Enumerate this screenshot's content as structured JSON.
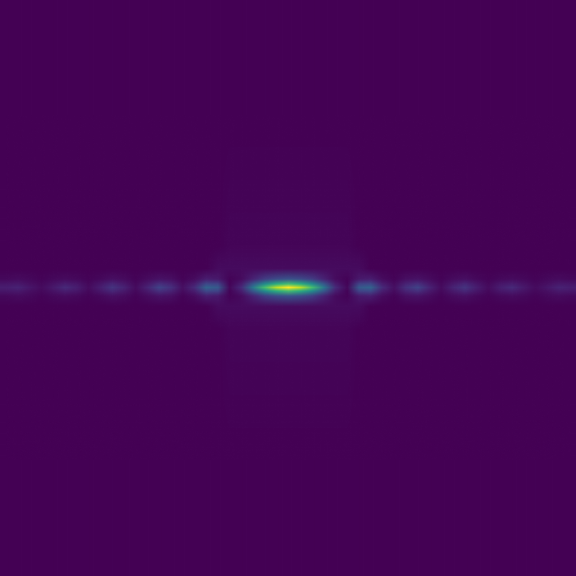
{
  "chart_data": {
    "type": "heatmap",
    "tick_labels": false,
    "xlim": [
      0,
      49
    ],
    "ylim": [
      0,
      576
    ],
    "y_edges": [
      0,
      230,
      262,
      276,
      283,
      286,
      290,
      293,
      300,
      314,
      346,
      576
    ],
    "color_range": [
      0,
      1
    ],
    "cells": [
      [
        0,
        0,
        0,
        0,
        0,
        0,
        0,
        0,
        0,
        0,
        0,
        0,
        0,
        0,
        0,
        0,
        0,
        0,
        0,
        0,
        0,
        0,
        0,
        0,
        0,
        0,
        0,
        0,
        0,
        0,
        0,
        0,
        0,
        0,
        0,
        0,
        0,
        0,
        0,
        0,
        0,
        0,
        0,
        0,
        0,
        0,
        0,
        0,
        0
      ],
      [
        0,
        0,
        0,
        0,
        0,
        0,
        0,
        0,
        0,
        0,
        0,
        0,
        0,
        0,
        0,
        0,
        0,
        0,
        0,
        0.015,
        0.015,
        0.015,
        0.015,
        0.015,
        0.015,
        0.015,
        0.015,
        0.015,
        0.015,
        0.015,
        0,
        0,
        0,
        0,
        0,
        0,
        0,
        0,
        0,
        0,
        0,
        0,
        0,
        0,
        0,
        0,
        0,
        0,
        0
      ],
      [
        0,
        0,
        0,
        0,
        0,
        0,
        0,
        0,
        0,
        0,
        0,
        0,
        0,
        0,
        0,
        0,
        0,
        0,
        0.03,
        0.03,
        0.03,
        0.03,
        0.03,
        0.03,
        0.03,
        0.03,
        0.03,
        0.03,
        0.03,
        0.03,
        0.03,
        0,
        0,
        0,
        0,
        0,
        0,
        0,
        0,
        0,
        0,
        0,
        0,
        0,
        0,
        0,
        0,
        0,
        0
      ],
      [
        0.02,
        0.03,
        0.02,
        0.01,
        0.02,
        0.03,
        0.02,
        0.01,
        0.02,
        0.04,
        0.03,
        0.01,
        0.03,
        0.05,
        0.04,
        0.01,
        0.03,
        0.08,
        0.07,
        0.01,
        0.03,
        0.1,
        0.18,
        0.23,
        0.25,
        0.23,
        0.18,
        0.1,
        0.03,
        0.01,
        0.07,
        0.08,
        0.03,
        0.01,
        0.04,
        0.05,
        0.03,
        0.01,
        0.03,
        0.04,
        0.02,
        0.01,
        0.02,
        0.03,
        0.02,
        0.01,
        0.02,
        0.03,
        0.02
      ],
      [
        0.06,
        0.07,
        0.04,
        0.02,
        0.05,
        0.08,
        0.06,
        0.02,
        0.06,
        0.11,
        0.07,
        0.02,
        0.07,
        0.14,
        0.1,
        0.03,
        0.08,
        0.22,
        0.2,
        0.01,
        0.08,
        0.28,
        0.49,
        0.63,
        0.7,
        0.63,
        0.49,
        0.28,
        0.08,
        0.01,
        0.2,
        0.22,
        0.08,
        0.03,
        0.1,
        0.14,
        0.07,
        0.02,
        0.07,
        0.11,
        0.06,
        0.02,
        0.06,
        0.08,
        0.05,
        0.02,
        0.04,
        0.07,
        0.06
      ],
      [
        0.08,
        0.1,
        0.06,
        0.03,
        0.07,
        0.12,
        0.08,
        0.03,
        0.08,
        0.15,
        0.1,
        0.03,
        0.1,
        0.2,
        0.14,
        0.04,
        0.12,
        0.32,
        0.28,
        0.02,
        0.12,
        0.4,
        0.7,
        0.9,
        1.0,
        0.9,
        0.7,
        0.4,
        0.12,
        0.02,
        0.28,
        0.32,
        0.12,
        0.04,
        0.14,
        0.2,
        0.1,
        0.03,
        0.1,
        0.15,
        0.08,
        0.03,
        0.08,
        0.12,
        0.07,
        0.03,
        0.06,
        0.1,
        0.08
      ],
      [
        0.06,
        0.07,
        0.04,
        0.02,
        0.05,
        0.08,
        0.06,
        0.02,
        0.06,
        0.11,
        0.07,
        0.02,
        0.07,
        0.14,
        0.1,
        0.03,
        0.08,
        0.22,
        0.2,
        0.01,
        0.08,
        0.28,
        0.49,
        0.63,
        0.7,
        0.63,
        0.49,
        0.28,
        0.08,
        0.01,
        0.2,
        0.22,
        0.08,
        0.03,
        0.1,
        0.14,
        0.07,
        0.02,
        0.07,
        0.11,
        0.06,
        0.02,
        0.06,
        0.08,
        0.05,
        0.02,
        0.04,
        0.07,
        0.06
      ],
      [
        0.02,
        0.03,
        0.02,
        0.01,
        0.02,
        0.03,
        0.02,
        0.01,
        0.02,
        0.04,
        0.03,
        0.01,
        0.03,
        0.05,
        0.04,
        0.01,
        0.03,
        0.08,
        0.07,
        0.01,
        0.03,
        0.1,
        0.18,
        0.23,
        0.25,
        0.23,
        0.18,
        0.1,
        0.03,
        0.01,
        0.07,
        0.08,
        0.03,
        0.01,
        0.04,
        0.05,
        0.03,
        0.01,
        0.03,
        0.04,
        0.02,
        0.01,
        0.02,
        0.03,
        0.02,
        0.01,
        0.02,
        0.03,
        0.02
      ],
      [
        0,
        0,
        0,
        0,
        0,
        0,
        0,
        0,
        0,
        0,
        0,
        0,
        0,
        0,
        0,
        0,
        0,
        0,
        0.03,
        0.03,
        0.03,
        0.03,
        0.03,
        0.03,
        0.03,
        0.03,
        0.03,
        0.03,
        0.03,
        0.03,
        0.03,
        0,
        0,
        0,
        0,
        0,
        0,
        0,
        0,
        0,
        0,
        0,
        0,
        0,
        0,
        0,
        0,
        0,
        0
      ],
      [
        0,
        0,
        0,
        0,
        0,
        0,
        0,
        0,
        0,
        0,
        0,
        0,
        0,
        0,
        0,
        0,
        0,
        0,
        0,
        0.015,
        0.015,
        0.015,
        0.015,
        0.015,
        0.015,
        0.015,
        0.015,
        0.015,
        0.015,
        0.015,
        0,
        0,
        0,
        0,
        0,
        0,
        0,
        0,
        0,
        0,
        0,
        0,
        0,
        0,
        0,
        0,
        0,
        0,
        0
      ],
      [
        0,
        0,
        0,
        0,
        0,
        0,
        0,
        0,
        0,
        0,
        0,
        0,
        0,
        0,
        0,
        0,
        0,
        0,
        0,
        0,
        0,
        0,
        0,
        0,
        0,
        0,
        0,
        0,
        0,
        0,
        0,
        0,
        0,
        0,
        0,
        0,
        0,
        0,
        0,
        0,
        0,
        0,
        0,
        0,
        0,
        0,
        0,
        0,
        0
      ]
    ]
  }
}
